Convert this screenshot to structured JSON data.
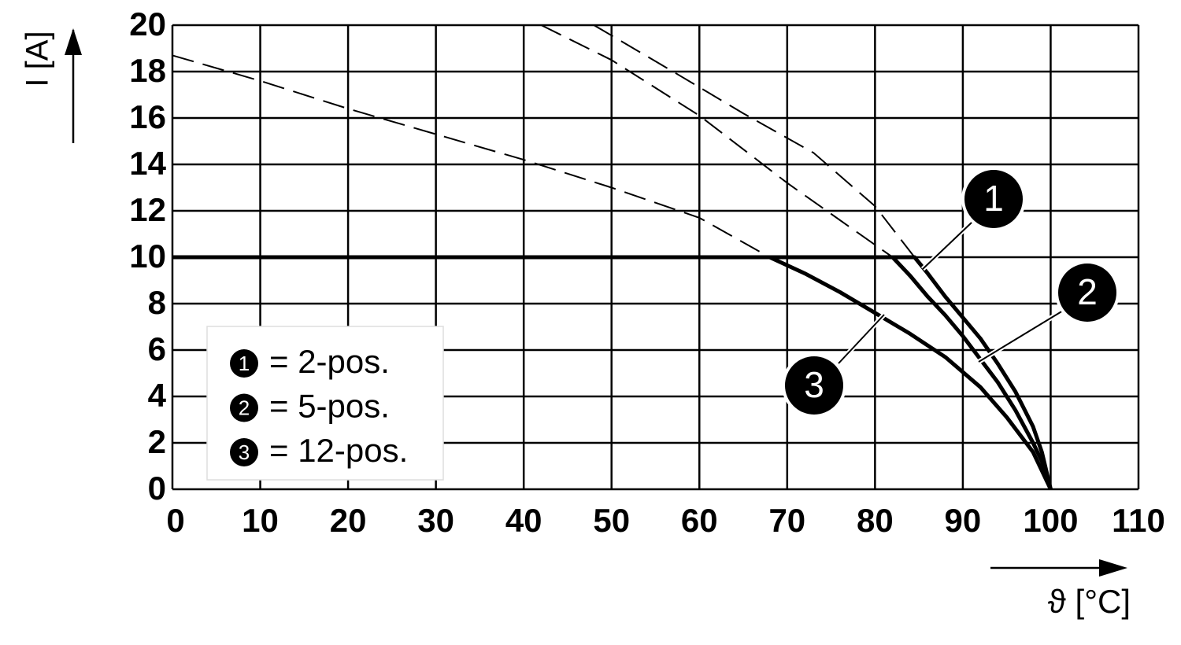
{
  "chart_data": {
    "type": "line",
    "y_label": "I [A]",
    "x_label": "ϑ [°C]",
    "xlim": [
      0,
      110
    ],
    "xticks": [
      0,
      10,
      20,
      30,
      40,
      50,
      60,
      70,
      80,
      90,
      100,
      110
    ],
    "ylim": [
      0,
      20
    ],
    "yticks": [
      0,
      2,
      4,
      6,
      8,
      10,
      12,
      14,
      16,
      18,
      20
    ],
    "grid": true,
    "legend": "lower left",
    "series": [
      {
        "marker": "1",
        "name": "= 2-pos.",
        "color": "#000000",
        "x": [
          0,
          84.5,
          86,
          88,
          90,
          92,
          94,
          96,
          98,
          99,
          100
        ],
        "values": [
          10,
          10,
          9.3,
          8.3,
          7.4,
          6.5,
          5.4,
          4.2,
          2.7,
          1.6,
          0
        ]
      },
      {
        "marker": "2",
        "name": "= 5-pos.",
        "color": "#000000",
        "x": [
          0,
          82,
          84,
          86,
          88,
          90,
          92,
          94,
          96,
          98,
          99,
          100
        ],
        "values": [
          10,
          10,
          9.2,
          8.3,
          7.5,
          6.6,
          5.6,
          4.6,
          3.4,
          2.0,
          1.2,
          0
        ]
      },
      {
        "marker": "3",
        "name": "= 12-pos.",
        "color": "#000000",
        "x": [
          0,
          68,
          72,
          76,
          80,
          84,
          88,
          92,
          95,
          98,
          100
        ],
        "values": [
          10,
          10,
          9.3,
          8.5,
          7.6,
          6.7,
          5.7,
          4.4,
          3.1,
          1.6,
          0
        ]
      }
    ],
    "extrapolations": [
      {
        "color": "#000000",
        "x": [
          48,
          57,
          65,
          73,
          80,
          84.5
        ],
        "values": [
          20,
          18,
          16.2,
          14.5,
          12.2,
          10
        ]
      },
      {
        "color": "#000000",
        "x": [
          42,
          50,
          60,
          70,
          82
        ],
        "values": [
          20,
          18.5,
          16.1,
          13.2,
          10
        ]
      },
      {
        "color": "#000000",
        "x": [
          0,
          10,
          20,
          30,
          40,
          50,
          60,
          68
        ],
        "values": [
          18.7,
          17.6,
          16.4,
          15.3,
          14.2,
          13.0,
          11.7,
          10
        ]
      }
    ]
  }
}
